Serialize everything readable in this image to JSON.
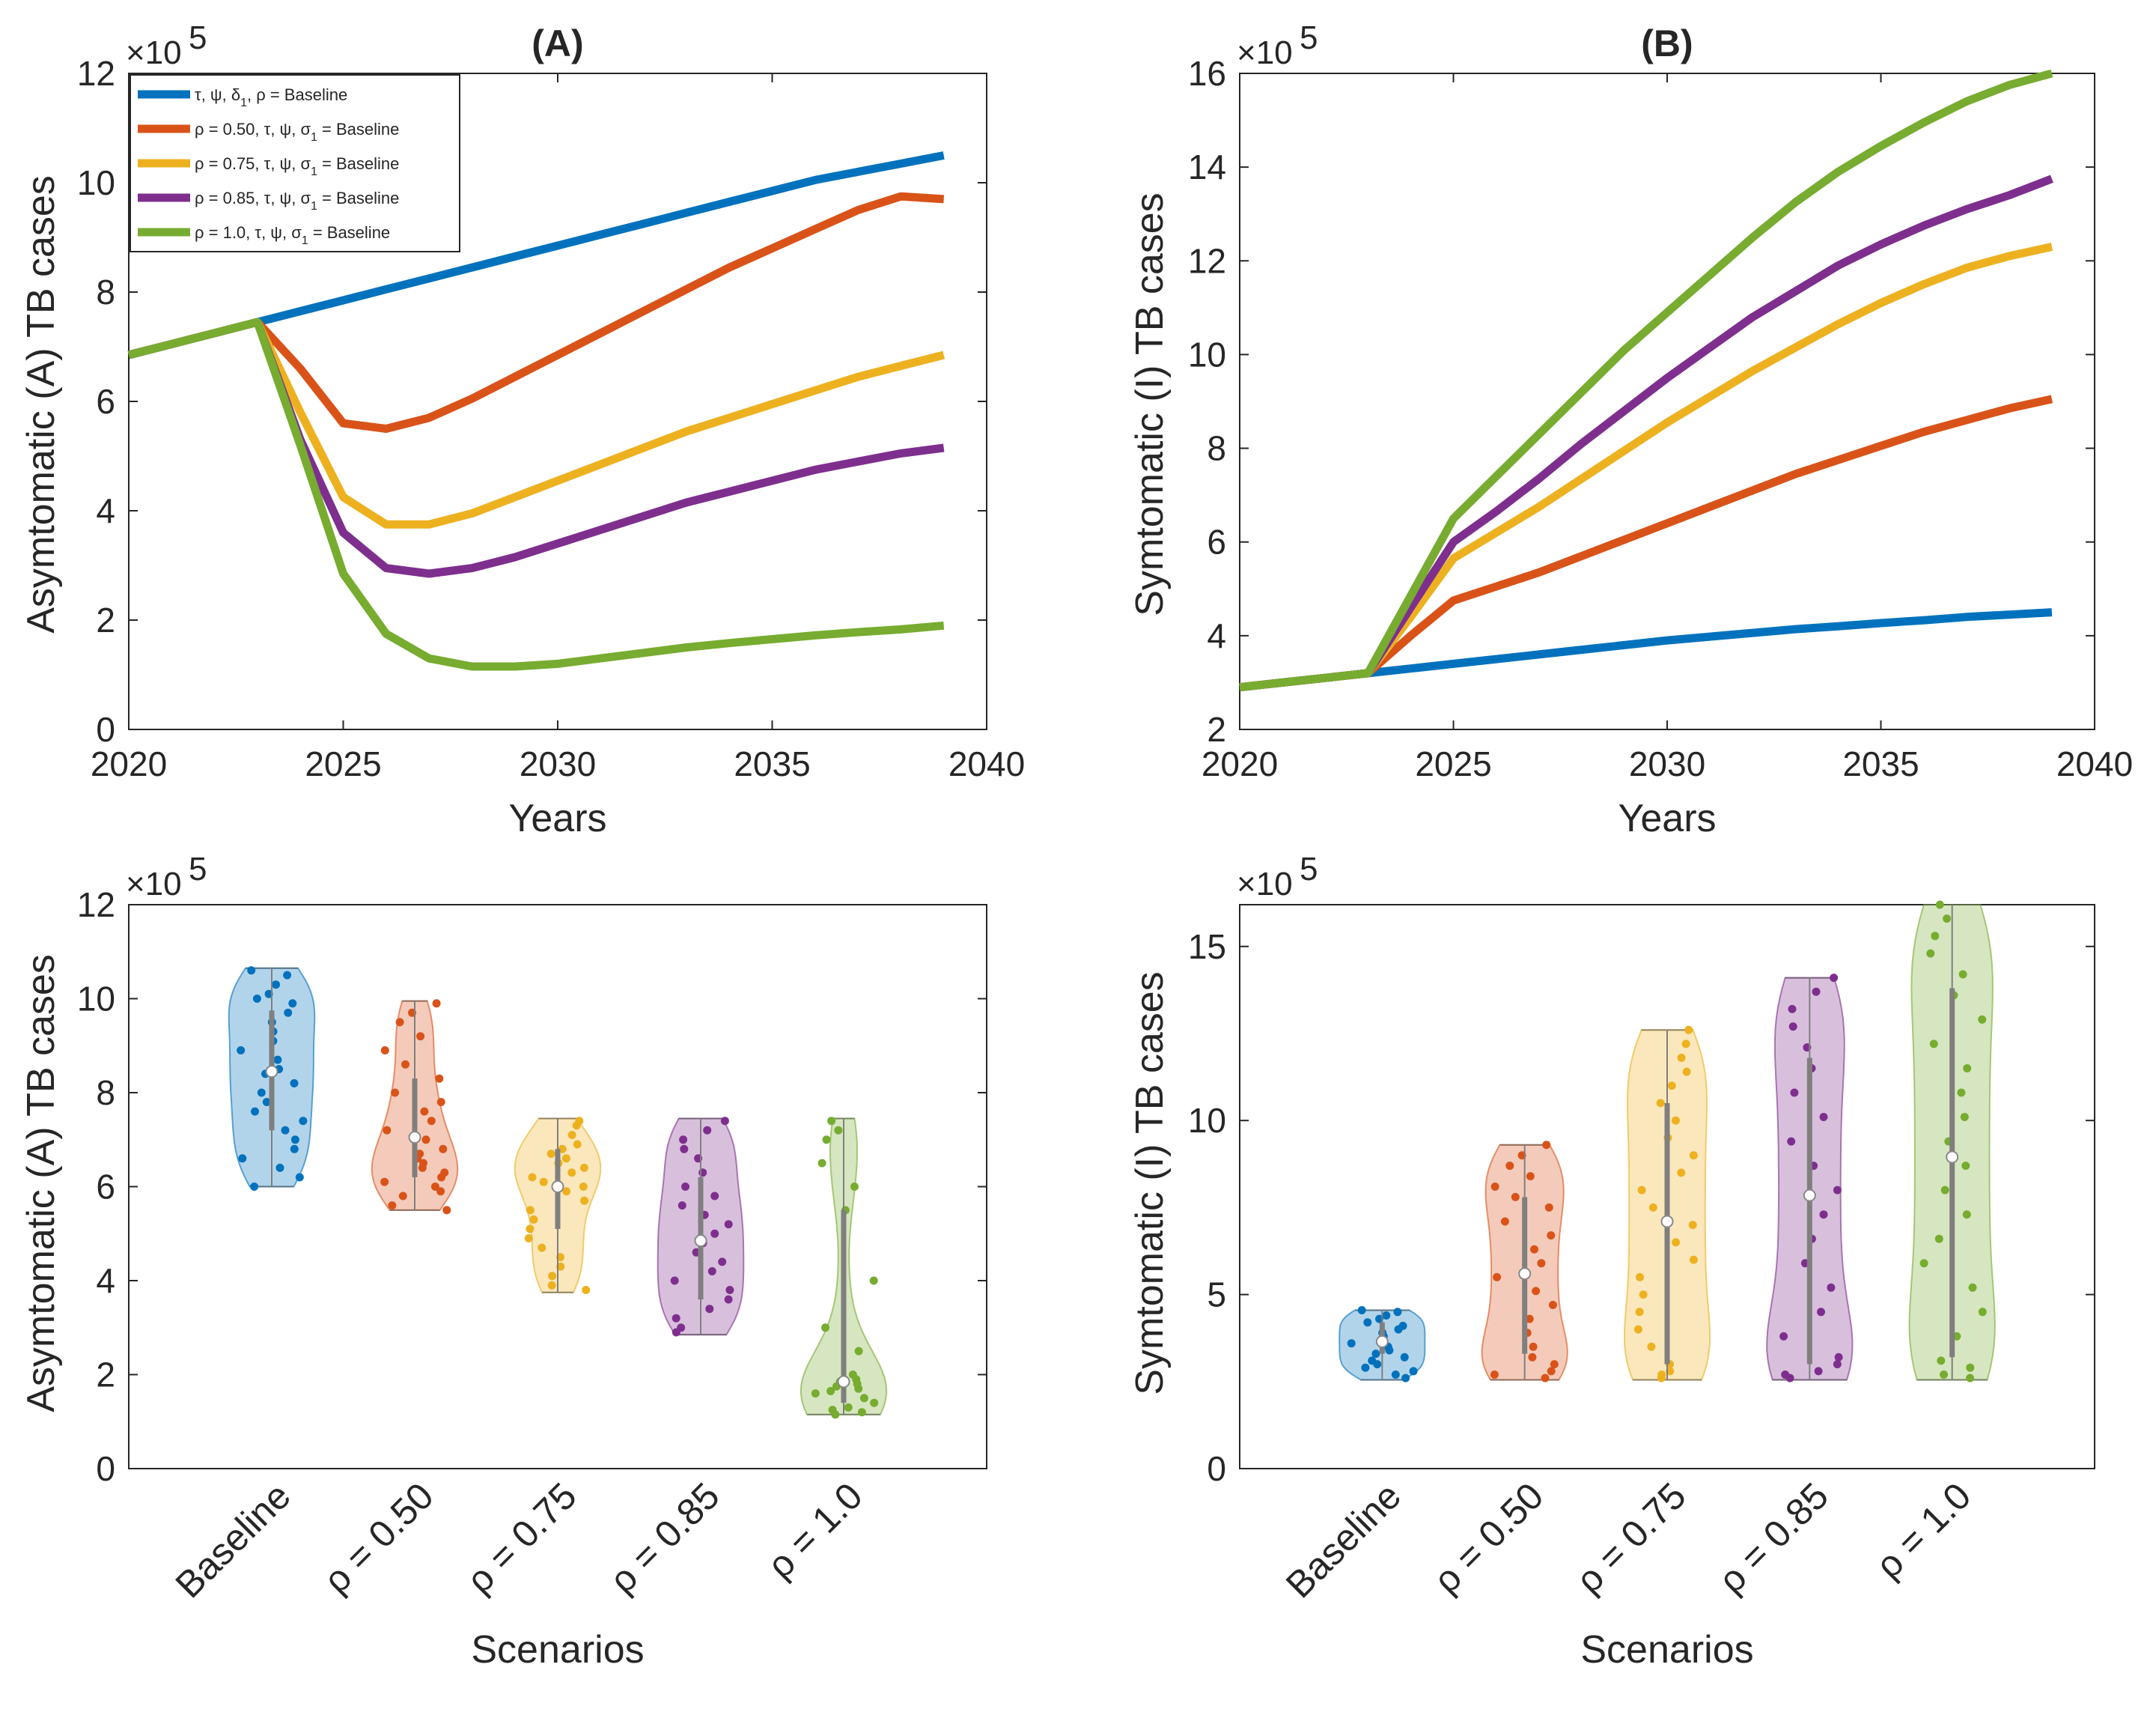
{
  "colors": {
    "baseline": "#0072BD",
    "rho050": "#D95319",
    "rho075": "#EDB120",
    "rho085": "#7E2F8E",
    "rho100": "#77AC30",
    "axis": "#262626",
    "whisker": "#7f7f7f"
  },
  "exponent_label": "×10",
  "exponent_power": "5",
  "chart_data": [
    {
      "id": "A",
      "type": "line",
      "title": "(A)",
      "xlabel": "Years",
      "ylabel": "Asymtomatic (A) TB cases",
      "xlim": [
        2020,
        2040
      ],
      "ylim": [
        0,
        12
      ],
      "xticks": [
        2020,
        2025,
        2030,
        2035,
        2040
      ],
      "yticks": [
        0,
        2,
        4,
        6,
        8,
        10,
        12
      ],
      "scale": "×10^5",
      "x": [
        2020,
        2021,
        2022,
        2023,
        2024,
        2025,
        2026,
        2027,
        2028,
        2029,
        2030,
        2031,
        2032,
        2033,
        2034,
        2035,
        2036,
        2037,
        2038,
        2039
      ],
      "series": [
        {
          "name": "τ, ψ, δ1, ρ = Baseline",
          "color_key": "baseline",
          "values": [
            6.85,
            7.05,
            7.25,
            7.45,
            7.65,
            7.85,
            8.05,
            8.25,
            8.45,
            8.65,
            8.85,
            9.05,
            9.25,
            9.45,
            9.65,
            9.85,
            10.05,
            10.2,
            10.35,
            10.5
          ]
        },
        {
          "name": "ρ = 0.50, τ, ψ, σ1 = Baseline",
          "color_key": "rho050",
          "values": [
            6.85,
            7.05,
            7.25,
            7.45,
            6.6,
            5.6,
            5.5,
            5.7,
            6.05,
            6.45,
            6.85,
            7.25,
            7.65,
            8.05,
            8.45,
            8.8,
            9.15,
            9.5,
            9.75,
            9.7
          ]
        },
        {
          "name": "ρ = 0.75, τ, ψ, σ1 = Baseline",
          "color_key": "rho075",
          "values": [
            6.85,
            7.05,
            7.25,
            7.45,
            5.8,
            4.25,
            3.75,
            3.75,
            3.95,
            4.25,
            4.55,
            4.85,
            5.15,
            5.45,
            5.7,
            5.95,
            6.2,
            6.45,
            6.65,
            6.85
          ]
        },
        {
          "name": "ρ = 0.85, τ, ψ, σ1 = Baseline",
          "color_key": "rho085",
          "values": [
            6.85,
            7.05,
            7.25,
            7.45,
            5.3,
            3.6,
            2.95,
            2.85,
            2.95,
            3.15,
            3.4,
            3.65,
            3.9,
            4.15,
            4.35,
            4.55,
            4.75,
            4.9,
            5.05,
            5.15
          ]
        },
        {
          "name": "ρ = 1.0, τ, ψ, σ1 = Baseline",
          "color_key": "rho100",
          "values": [
            6.85,
            7.05,
            7.25,
            7.45,
            5.2,
            2.85,
            1.75,
            1.3,
            1.15,
            1.15,
            1.2,
            1.3,
            1.4,
            1.5,
            1.58,
            1.65,
            1.72,
            1.78,
            1.83,
            1.9
          ]
        }
      ],
      "legend": {
        "placement": "top-left",
        "entries": [
          {
            "text": "τ, ψ, δ",
            "sub": "1",
            "rest": ", ρ = Baseline",
            "color_key": "baseline"
          },
          {
            "text": "ρ = 0.50, τ, ψ, σ",
            "sub": "1",
            "rest": " = Baseline",
            "color_key": "rho050"
          },
          {
            "text": "ρ = 0.75, τ, ψ, σ",
            "sub": "1",
            "rest": " = Baseline",
            "color_key": "rho075"
          },
          {
            "text": "ρ = 0.85, τ, ψ, σ",
            "sub": "1",
            "rest": " = Baseline",
            "color_key": "rho085"
          },
          {
            "text": "ρ = 1.0, τ, ψ, σ",
            "sub": "1",
            "rest": " = Baseline",
            "color_key": "rho100"
          }
        ]
      }
    },
    {
      "id": "B",
      "type": "line",
      "title": "(B)",
      "xlabel": "Years",
      "ylabel": "Symtomatic (I) TB cases",
      "xlim": [
        2020,
        2040
      ],
      "ylim": [
        2,
        16
      ],
      "xticks": [
        2020,
        2025,
        2030,
        2035,
        2040
      ],
      "yticks": [
        2,
        4,
        6,
        8,
        10,
        12,
        14,
        16
      ],
      "scale": "×10^5",
      "x": [
        2020,
        2021,
        2022,
        2023,
        2024,
        2025,
        2026,
        2027,
        2028,
        2029,
        2030,
        2031,
        2032,
        2033,
        2034,
        2035,
        2036,
        2037,
        2038,
        2039
      ],
      "series": [
        {
          "name": "Baseline",
          "color_key": "baseline",
          "values": [
            2.9,
            3.0,
            3.1,
            3.2,
            3.3,
            3.4,
            3.5,
            3.6,
            3.7,
            3.8,
            3.9,
            3.98,
            4.06,
            4.14,
            4.2,
            4.27,
            4.33,
            4.4,
            4.45,
            4.5
          ]
        },
        {
          "name": "ρ = 0.50",
          "color_key": "rho050",
          "values": [
            2.9,
            3.0,
            3.1,
            3.2,
            4.0,
            4.75,
            5.05,
            5.35,
            5.7,
            6.05,
            6.4,
            6.75,
            7.1,
            7.45,
            7.75,
            8.05,
            8.35,
            8.6,
            8.85,
            9.05
          ]
        },
        {
          "name": "ρ = 0.75",
          "color_key": "rho075",
          "values": [
            2.9,
            3.0,
            3.1,
            3.2,
            4.4,
            5.65,
            6.2,
            6.75,
            7.35,
            7.95,
            8.55,
            9.1,
            9.65,
            10.15,
            10.65,
            11.1,
            11.5,
            11.85,
            12.1,
            12.3
          ]
        },
        {
          "name": "ρ = 0.85",
          "color_key": "rho085",
          "values": [
            2.9,
            3.0,
            3.1,
            3.2,
            4.6,
            6.0,
            6.65,
            7.35,
            8.1,
            8.8,
            9.5,
            10.15,
            10.8,
            11.35,
            11.9,
            12.35,
            12.75,
            13.1,
            13.4,
            13.75
          ]
        },
        {
          "name": "ρ = 1.0",
          "color_key": "rho100",
          "values": [
            2.9,
            3.0,
            3.1,
            3.2,
            4.85,
            6.5,
            7.4,
            8.3,
            9.2,
            10.1,
            10.9,
            11.7,
            12.5,
            13.25,
            13.9,
            14.45,
            14.95,
            15.4,
            15.75,
            16.0
          ]
        }
      ]
    },
    {
      "id": "C",
      "type": "violin",
      "xlabel": "Scenarios",
      "ylabel": "Asymtomatic (A) TB cases",
      "ylim": [
        0,
        12
      ],
      "yticks": [
        0,
        2,
        4,
        6,
        8,
        10,
        12
      ],
      "scale": "×10^5",
      "categories": [
        "Baseline",
        "ρ = 0.50",
        "ρ = 0.75",
        "ρ = 0.85",
        "ρ = 1.0"
      ],
      "color_keys": [
        "baseline",
        "rho050",
        "rho075",
        "rho085",
        "rho100"
      ],
      "medians": [
        8.45,
        7.05,
        6.0,
        4.85,
        1.85
      ],
      "quartiles": [
        [
          7.2,
          9.75
        ],
        [
          6.2,
          8.3
        ],
        [
          5.1,
          6.8
        ],
        [
          3.6,
          6.2
        ],
        [
          1.4,
          5.5
        ]
      ],
      "ranges": [
        [
          6.0,
          10.65
        ],
        [
          5.5,
          9.95
        ],
        [
          3.75,
          7.45
        ],
        [
          2.85,
          7.45
        ],
        [
          1.15,
          7.45
        ]
      ],
      "samples": [
        [
          10.6,
          10.5,
          10.3,
          10.1,
          10.0,
          9.9,
          9.7,
          9.5,
          9.3,
          9.1,
          8.9,
          8.7,
          8.5,
          8.4,
          8.2,
          8.0,
          7.8,
          7.6,
          7.4,
          7.2,
          7.0,
          6.8,
          6.6,
          6.4,
          6.2,
          6.0
        ],
        [
          9.9,
          9.7,
          9.5,
          9.2,
          8.9,
          8.6,
          8.3,
          8.0,
          7.8,
          7.6,
          7.4,
          7.2,
          7.0,
          6.8,
          6.7,
          6.6,
          6.5,
          6.4,
          6.3,
          6.2,
          6.1,
          6.0,
          5.9,
          5.8,
          5.6,
          5.5
        ],
        [
          7.4,
          7.3,
          7.1,
          6.9,
          6.8,
          6.7,
          6.6,
          6.5,
          6.4,
          6.3,
          6.2,
          6.1,
          6.0,
          5.9,
          5.7,
          5.5,
          5.3,
          5.1,
          4.9,
          4.7,
          4.5,
          4.3,
          4.1,
          3.9,
          3.8
        ],
        [
          7.4,
          7.2,
          7.0,
          6.8,
          6.6,
          6.3,
          6.0,
          5.8,
          5.6,
          5.4,
          5.2,
          5.0,
          4.8,
          4.6,
          4.4,
          4.2,
          4.0,
          3.8,
          3.6,
          3.4,
          3.2,
          3.0,
          2.9
        ],
        [
          7.4,
          7.2,
          7.0,
          6.5,
          6.0,
          5.5,
          4.0,
          3.0,
          2.5,
          2.0,
          1.9,
          1.85,
          1.8,
          1.75,
          1.7,
          1.65,
          1.6,
          1.5,
          1.4,
          1.3,
          1.25,
          1.2,
          1.15
        ]
      ]
    },
    {
      "id": "D",
      "type": "violin",
      "xlabel": "Scenarios",
      "ylabel": "Symtomatic (I) TB cases",
      "ylim": [
        0,
        16.2
      ],
      "yticks": [
        0,
        5,
        10,
        15
      ],
      "scale": "×10^5",
      "categories": [
        "Baseline",
        "ρ = 0.50",
        "ρ = 0.75",
        "ρ = 0.85",
        "ρ = 1.0"
      ],
      "color_keys": [
        "baseline",
        "rho050",
        "rho075",
        "rho085",
        "rho100"
      ],
      "medians": [
        3.65,
        5.6,
        7.1,
        7.85,
        8.95
      ],
      "quartiles": [
        [
          3.3,
          4.2
        ],
        [
          3.3,
          7.8
        ],
        [
          3.0,
          10.5
        ],
        [
          3.0,
          11.8
        ],
        [
          3.2,
          13.8
        ]
      ],
      "ranges": [
        [
          2.55,
          4.55
        ],
        [
          2.55,
          9.3
        ],
        [
          2.55,
          12.6
        ],
        [
          2.55,
          14.1
        ],
        [
          2.55,
          16.2
        ]
      ],
      "samples": [
        [
          4.55,
          4.5,
          4.4,
          4.3,
          4.2,
          4.1,
          4.0,
          3.9,
          3.8,
          3.7,
          3.6,
          3.5,
          3.4,
          3.3,
          3.2,
          3.1,
          3.0,
          2.9,
          2.8,
          2.7,
          2.6
        ],
        [
          9.3,
          9.0,
          8.7,
          8.4,
          8.1,
          7.8,
          7.5,
          7.1,
          6.7,
          6.3,
          5.9,
          5.5,
          5.1,
          4.7,
          4.3,
          3.9,
          3.5,
          3.2,
          3.0,
          2.8,
          2.7,
          2.6
        ],
        [
          12.6,
          12.2,
          11.8,
          11.4,
          11.0,
          10.5,
          10.0,
          9.5,
          9.0,
          8.5,
          8.0,
          7.5,
          7.0,
          6.5,
          6.0,
          5.5,
          5.0,
          4.5,
          4.0,
          3.5,
          3.0,
          2.8,
          2.7,
          2.6
        ],
        [
          14.1,
          13.7,
          13.2,
          12.7,
          12.1,
          11.5,
          10.8,
          10.1,
          9.4,
          8.7,
          8.0,
          7.3,
          6.6,
          5.9,
          5.2,
          4.5,
          3.8,
          3.2,
          3.0,
          2.8,
          2.7,
          2.6
        ],
        [
          16.2,
          15.8,
          15.3,
          14.8,
          14.2,
          13.6,
          12.9,
          12.2,
          11.5,
          10.8,
          10.1,
          9.4,
          8.7,
          8.0,
          7.3,
          6.6,
          5.9,
          5.2,
          4.5,
          3.8,
          3.1,
          2.9,
          2.7,
          2.6
        ]
      ]
    }
  ]
}
